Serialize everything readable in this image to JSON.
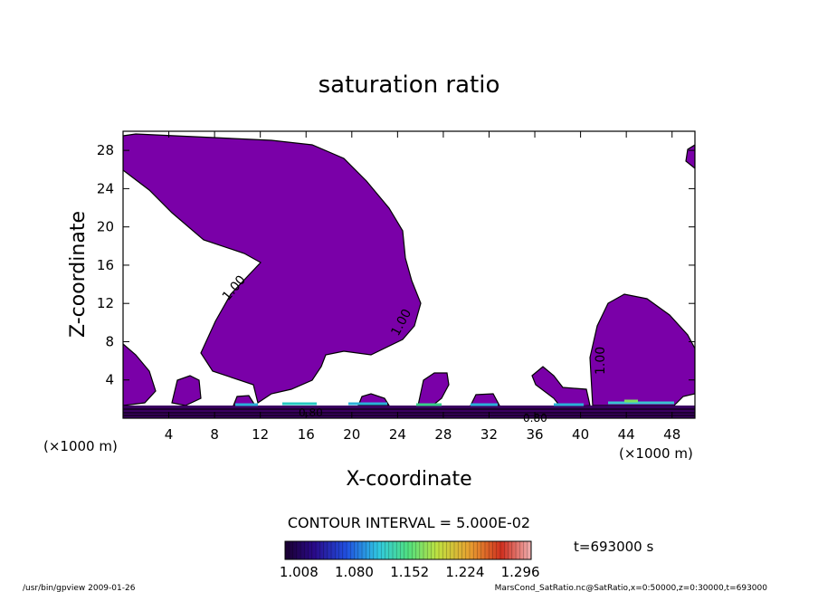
{
  "chart_data": {
    "type": "contour",
    "title": "saturation ratio",
    "xlabel": "X-coordinate",
    "ylabel": "Z-coordinate",
    "x_unit": "(×1000 m)",
    "y_unit": "(×1000 m)",
    "xlim": [
      0,
      50
    ],
    "ylim": [
      0,
      30
    ],
    "x_ticks": [
      4,
      8,
      12,
      16,
      20,
      24,
      28,
      32,
      36,
      40,
      44,
      48
    ],
    "y_ticks": [
      4,
      8,
      12,
      16,
      20,
      24,
      28
    ],
    "contour_interval_text": "CONTOUR INTERVAL = 5.000E-02",
    "contour_labels": [
      "1.00",
      "1.00",
      "1.00",
      "0.80",
      "0.80"
    ],
    "fill_color": "#7a00a8",
    "colorbar": {
      "tick_labels": [
        "1.008",
        "1.080",
        "1.152",
        "1.224",
        "1.296"
      ],
      "range": [
        0.99,
        1.31
      ]
    },
    "time_text": "t=693000 s",
    "footer_left": "/usr/bin/gpview   2009-01-26",
    "footer_right": "MarsCond_SatRatio.nc@SatRatio,x=0:50000,z=0:30000,t=693000"
  }
}
